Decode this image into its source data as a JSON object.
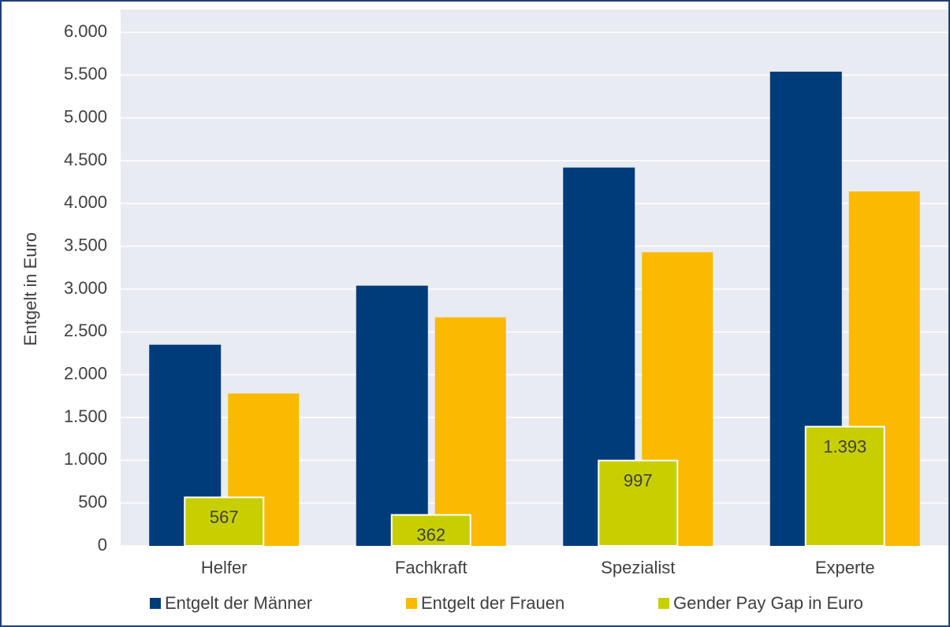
{
  "chart_data": {
    "type": "bar",
    "y_axis_label": "Entgelt in Euro",
    "categories": [
      "Helfer",
      "Fachkraft",
      "Spezialist",
      "Experte"
    ],
    "series": [
      {
        "name": "Entgelt der Männer",
        "color": "#003b7a",
        "values": [
          2350,
          3040,
          4420,
          5540
        ]
      },
      {
        "name": "Entgelt der Frauen",
        "color": "#fbb900",
        "values": [
          1780,
          2670,
          3430,
          4140
        ]
      },
      {
        "name": "Gender Pay Gap in Euro",
        "color": "#c8cf00",
        "values": [
          567,
          362,
          997,
          1393
        ],
        "value_labels": [
          "567",
          "362",
          "997",
          "1.393"
        ]
      }
    ],
    "ylim": [
      0,
      6000
    ],
    "yticks": [
      0,
      500,
      {
        "value": 1000,
        "label": "1.000"
      },
      {
        "value": 1500,
        "label": "1.500"
      },
      {
        "value": 2000,
        "label": "2.000"
      },
      {
        "value": 2500,
        "label": "2.500"
      },
      {
        "value": 3000,
        "label": "3.000"
      },
      {
        "value": 3500,
        "label": "3.500"
      },
      {
        "value": 4000,
        "label": "4.000"
      },
      {
        "value": 4500,
        "label": "4.500"
      },
      {
        "value": 5000,
        "label": "5.000"
      },
      {
        "value": 5500,
        "label": "5.500"
      },
      {
        "value": 6000,
        "label": "6.000"
      }
    ],
    "grid": true,
    "legend": "bottom"
  }
}
